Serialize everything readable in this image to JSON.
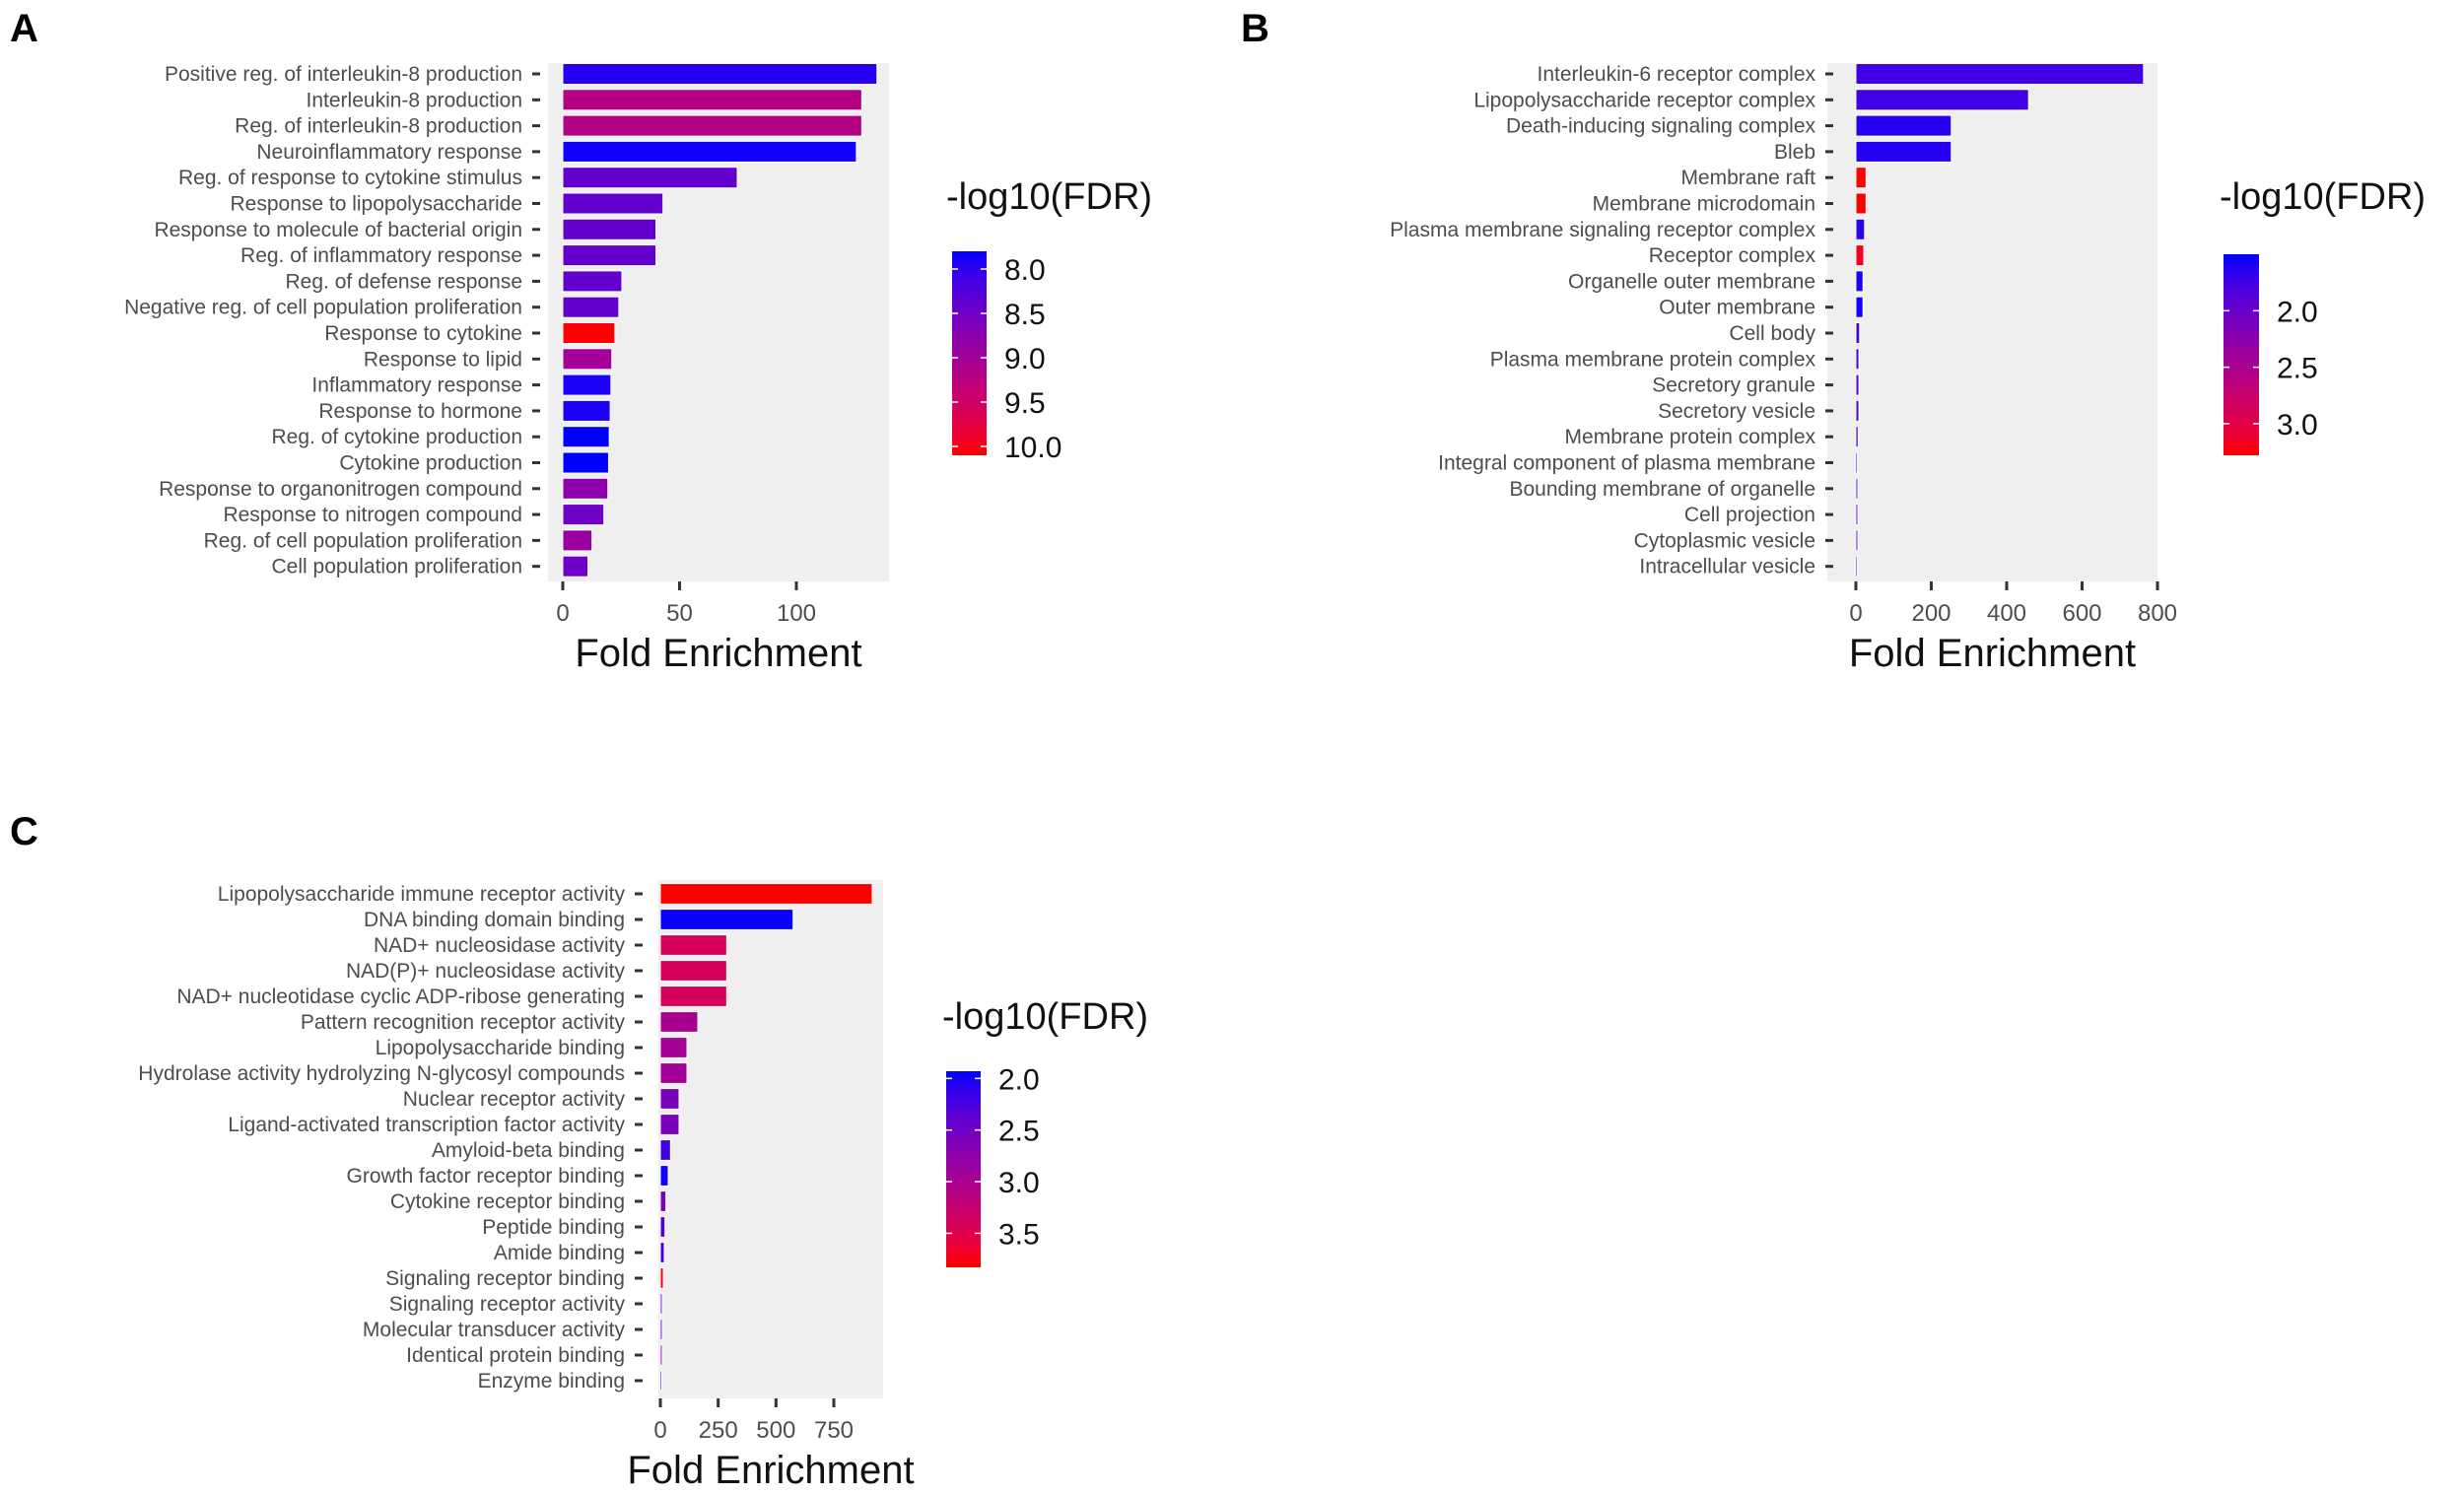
{
  "chart_data": [
    {
      "panel": "A",
      "type": "bar",
      "orientation": "horizontal",
      "xlabel": "Fold Enrichment",
      "xlim": [
        0,
        140
      ],
      "xticks": [
        0,
        50,
        100
      ],
      "legend_title": "-log10(FDR)",
      "legend_ticks": [
        8.0,
        8.5,
        9.0,
        9.5,
        10.0
      ],
      "color_range": [
        7.8,
        10.1
      ],
      "color_low": "#0000ff",
      "color_high": "#ff0000",
      "categories": [
        "Positive reg. of interleukin-8 production",
        "Interleukin-8 production",
        "Reg. of interleukin-8 production",
        "Neuroinflammatory response",
        "Reg. of response to cytokine stimulus",
        "Response to lipopolysaccharide",
        "Response to molecule of bacterial origin",
        "Reg. of inflammatory response",
        "Reg. of defense response",
        "Negative reg. of cell population proliferation",
        "Response to cytokine",
        "Response to lipid",
        "Inflammatory response",
        "Response to hormone",
        "Reg. of cytokine production",
        "Cytokine production",
        "Response to organonitrogen compound",
        "Response to nitrogen compound",
        "Reg. of cell population proliferation",
        "Cell population proliferation"
      ],
      "values": [
        134.5,
        128,
        128,
        125.7,
        74.7,
        42.9,
        39.9,
        39.9,
        25.3,
        24,
        22.3,
        21,
        20.6,
        20.3,
        19.9,
        19.6,
        19.3,
        17.6,
        12.5,
        10.8
      ],
      "neg_log10_fdr": [
        7.95,
        9.2,
        9.2,
        7.85,
        8.4,
        8.4,
        8.4,
        8.4,
        8.4,
        8.4,
        10.1,
        9.0,
        7.9,
        7.9,
        7.8,
        7.8,
        8.8,
        8.5,
        8.9,
        8.5
      ]
    },
    {
      "panel": "B",
      "type": "bar",
      "orientation": "horizontal",
      "xlabel": "Fold Enrichment",
      "xlim": [
        0,
        800
      ],
      "xticks": [
        0,
        200,
        400,
        600,
        800
      ],
      "legend_title": "-log10(FDR)",
      "legend_ticks": [
        2.0,
        2.5,
        3.0
      ],
      "color_range": [
        1.5,
        3.28
      ],
      "color_low": "#0000ff",
      "color_high": "#ff0000",
      "categories": [
        "Interleukin-6 receptor complex",
        "Lipopolysaccharide receptor complex",
        "Death-inducing signaling complex",
        "Bleb",
        "Membrane raft",
        "Membrane microdomain",
        "Plasma membrane signaling receptor complex",
        "Receptor complex",
        "Organelle outer membrane",
        "Outer membrane",
        "Cell body",
        "Plasma membrane protein complex",
        "Secretory granule",
        "Secretory vesicle",
        "Membrane protein complex",
        "Integral component of plasma membrane",
        "Bounding membrane of organelle",
        "Cell projection",
        "Cytoplasmic vesicle",
        "Intracellular vesicle"
      ],
      "values": [
        763,
        458,
        253,
        253,
        27,
        27,
        23,
        21,
        19,
        19,
        10,
        8,
        8,
        8,
        6,
        4,
        5,
        5,
        5,
        4
      ],
      "neg_log10_fdr": [
        1.75,
        1.75,
        1.62,
        1.62,
        3.28,
        3.28,
        1.65,
        3.2,
        1.55,
        1.55,
        1.8,
        1.8,
        1.9,
        1.85,
        1.8,
        1.55,
        1.85,
        1.85,
        1.85,
        1.85
      ]
    },
    {
      "panel": "C",
      "type": "bar",
      "orientation": "horizontal",
      "xlabel": "Fold Enrichment",
      "xlim": [
        0,
        950
      ],
      "xticks": [
        0,
        250,
        500,
        750
      ],
      "legend_title": "-log10(FDR)",
      "legend_ticks": [
        2.0,
        2.5,
        3.0,
        3.5
      ],
      "color_range": [
        1.93,
        3.83
      ],
      "color_low": "#0000ff",
      "color_high": "#ff0000",
      "categories": [
        "Lipopolysaccharide immune receptor activity",
        "DNA binding domain binding",
        "NAD+ nucleosidase activity",
        "NAD(P)+ nucleosidase activity",
        "NAD+ nucleotidase cyclic ADP-ribose generating",
        "Pattern recognition receptor activity",
        "Lipopolysaccharide binding",
        "Hydrolase activity hydrolyzing N-glycosyl compounds",
        "Nuclear receptor activity",
        "Ligand-activated transcription factor activity",
        "Amyloid-beta binding",
        "Growth factor receptor binding",
        "Cytokine receptor binding",
        "Peptide binding",
        "Amide binding",
        "Signaling receptor binding",
        "Signaling receptor activity",
        "Molecular transducer activity",
        "Identical protein binding",
        "Enzyme binding"
      ],
      "values": [
        916,
        574,
        287,
        287,
        287,
        162,
        115,
        115,
        81,
        81,
        44,
        34,
        24,
        20,
        17,
        13,
        8,
        8,
        8,
        5
      ],
      "neg_log10_fdr": [
        3.83,
        1.95,
        3.4,
        3.4,
        3.4,
        3.0,
        2.95,
        2.95,
        2.6,
        2.6,
        2.2,
        1.97,
        2.6,
        2.3,
        2.2,
        3.8,
        2.4,
        2.3,
        2.7,
        2.0
      ]
    }
  ]
}
